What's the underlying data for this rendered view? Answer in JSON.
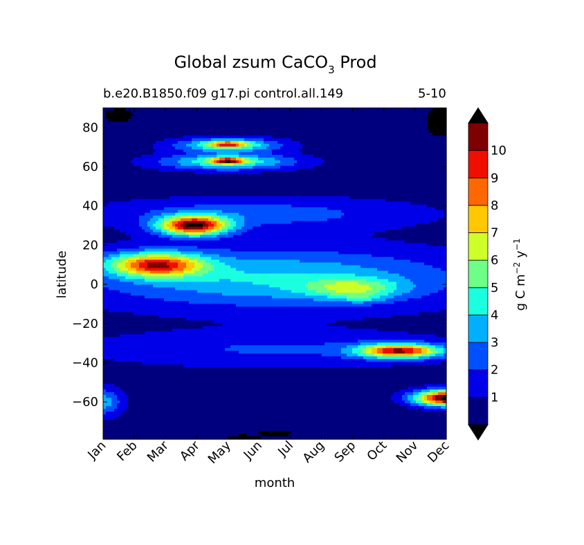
{
  "chart_data": {
    "type": "heatmap",
    "subtype": "filled-contour",
    "title": {
      "main": "Global zsum CaCO",
      "subscript": "3",
      "suffix": " Prod"
    },
    "subtitle_left": "b.e20.B1850.f09 g17.pi control.all.149",
    "subtitle_right": "5-10",
    "xlabel": "month",
    "ylabel": "latitude",
    "x_tick_labels": [
      "Jan",
      "Feb",
      "Mar",
      "Apr",
      "May",
      "Jun",
      "Jul",
      "Aug",
      "Sep",
      "Oct",
      "Nov",
      "Dec"
    ],
    "xlim": [
      1,
      12
    ],
    "y_ticks": [
      80,
      60,
      40,
      20,
      0,
      -20,
      -40,
      -60
    ],
    "y_tick_labels": [
      "80",
      "60",
      "40",
      "20",
      "0",
      "−20",
      "−40",
      "−60"
    ],
    "ylim": [
      -79,
      90
    ],
    "colorbar": {
      "label": "g C m",
      "label_exp1": "−2",
      "label_mid": " y",
      "label_exp2": "−1",
      "levels": [
        0,
        1,
        2,
        3,
        4,
        5,
        6,
        7,
        8,
        9,
        10,
        11
      ],
      "tick_labels": [
        "1",
        "2",
        "3",
        "4",
        "5",
        "6",
        "7",
        "8",
        "9",
        "10"
      ],
      "colors": [
        "#00007f",
        "#0000e8",
        "#0050ff",
        "#00b0ff",
        "#1affe0",
        "#6eff88",
        "#cfff28",
        "#ffc800",
        "#ff6800",
        "#f00e00",
        "#7f0000"
      ],
      "under_color": "#000000",
      "over_color": "#000000",
      "extend": "both"
    },
    "features": [
      {
        "name": "masked-corner-top-left",
        "kind": "mask",
        "month": 1.5,
        "lat": 86,
        "sx": 0.5,
        "sy": 4,
        "value": -1
      },
      {
        "name": "masked-corner-top-right",
        "kind": "mask",
        "month": 11.8,
        "lat": 83,
        "sx": 0.5,
        "sy": 8,
        "value": -1
      },
      {
        "name": "high-lat-band-70",
        "month": 5,
        "lat": 71,
        "sx": 1.6,
        "sy": 3.5,
        "value": 4.8
      },
      {
        "name": "high-lat-band-70-core",
        "month": 5,
        "lat": 71.5,
        "sx": 0.6,
        "sy": 1.5,
        "value": 5
      },
      {
        "name": "high-lat-band-62",
        "month": 5,
        "lat": 62.5,
        "sx": 2.1,
        "sy": 4,
        "value": 4.6
      },
      {
        "name": "high-lat-band-62-core",
        "month": 5,
        "lat": 63,
        "sx": 0.55,
        "sy": 1.6,
        "value": 6.5
      },
      {
        "name": "subtropical-n-bloom",
        "month": 3.9,
        "lat": 30,
        "sx": 1.1,
        "sy": 5,
        "value": 10
      },
      {
        "name": "subtropical-n-band",
        "month": 6,
        "lat": 36,
        "sx": 5,
        "sy": 8,
        "value": 2
      },
      {
        "name": "tropical-n-bloom",
        "month": 2.7,
        "lat": 10,
        "sx": 1.5,
        "sy": 6,
        "value": 8
      },
      {
        "name": "equatorial-broad",
        "month": 6.5,
        "lat": 3,
        "sx": 6,
        "sy": 15,
        "value": 3.6
      },
      {
        "name": "equatorial-autumn",
        "month": 9,
        "lat": -2,
        "sx": 1.5,
        "sy": 5,
        "value": 3.5
      },
      {
        "name": "equatorial-autumn-core",
        "month": 9.3,
        "lat": -7,
        "sx": 0.7,
        "sy": 2.5,
        "value": 1.5
      },
      {
        "name": "southern-front",
        "month": 10.5,
        "lat": -34,
        "sx": 1.3,
        "sy": 3.5,
        "value": 9
      },
      {
        "name": "southern-broad",
        "month": 6.5,
        "lat": -33,
        "sx": 6,
        "sy": 9,
        "value": 1.6
      },
      {
        "name": "southern-ocean-dec",
        "month": 12,
        "lat": -58,
        "sx": 1,
        "sy": 4,
        "value": 11
      },
      {
        "name": "southern-ocean-jan",
        "month": 1,
        "lat": -60,
        "sx": 0.6,
        "sy": 7,
        "value": 3
      },
      {
        "name": "masked-antarctic-jun",
        "kind": "mask",
        "month": 5.5,
        "lat": -78,
        "sx": 0.6,
        "sy": 1.3,
        "value": -1
      },
      {
        "name": "masked-antarctic-jul",
        "kind": "mask",
        "month": 6.5,
        "lat": -76,
        "sx": 0.6,
        "sy": 2,
        "value": -1
      }
    ]
  }
}
